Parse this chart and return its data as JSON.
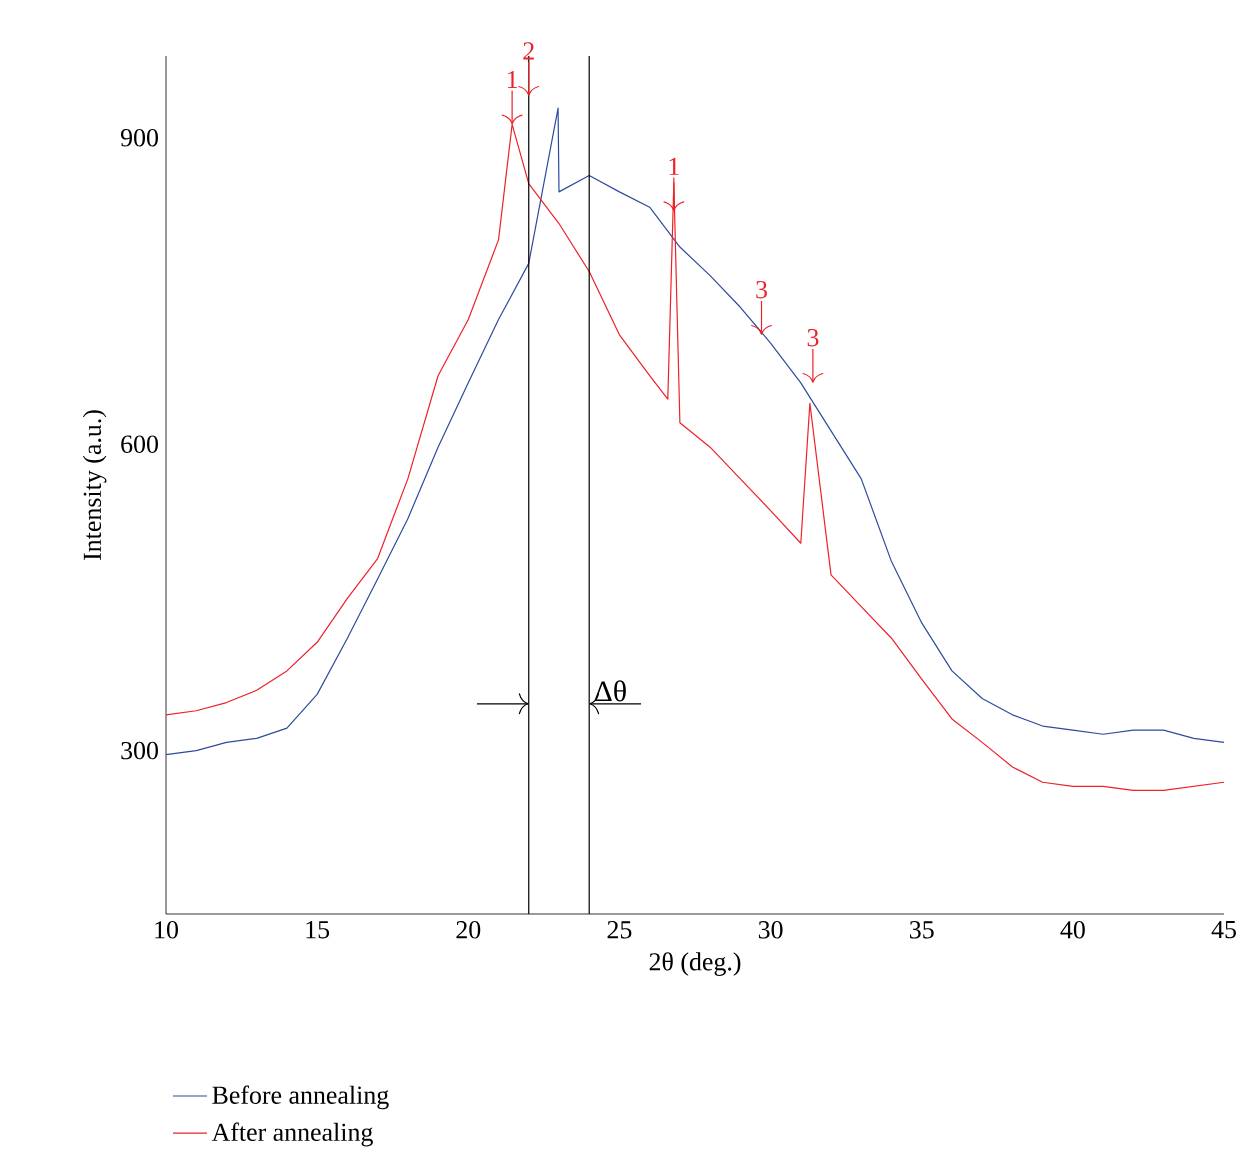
{
  "chart_data": {
    "type": "line",
    "xlabel": "2θ (deg.)",
    "ylabel": "Intensity (a.u.)",
    "xlim": [
      10,
      45
    ],
    "xticks": [
      10,
      15,
      20,
      25,
      30,
      35,
      40,
      45
    ],
    "ylim": [
      140,
      980
    ],
    "yticks": [
      300,
      600,
      900
    ],
    "grid": false,
    "legend": "bottom",
    "marker": "none",
    "line_style": "solid",
    "series": [
      {
        "name": "Before annealing",
        "color": "#2e4a9e",
        "x": [
          10,
          11,
          12,
          13,
          14,
          15,
          16,
          17,
          18,
          19,
          20,
          21,
          22,
          22.97,
          23,
          24,
          25,
          26,
          27,
          28,
          29,
          30,
          31,
          32,
          33,
          34,
          35,
          36,
          37,
          38,
          39,
          40,
          41,
          42,
          43,
          44,
          45
        ],
        "values": [
          296,
          300,
          308,
          312,
          322,
          355,
          410,
          468,
          527,
          597,
          660,
          722,
          777,
          929,
          847,
          863,
          847,
          832,
          793,
          765,
          734,
          699,
          660,
          613,
          566,
          485,
          425,
          378,
          351,
          335,
          324,
          320,
          316,
          320,
          320,
          312,
          308
        ]
      },
      {
        "name": "After annealing",
        "color": "#ee2028",
        "x": [
          10,
          11,
          12,
          13,
          14,
          15,
          16,
          17,
          18,
          19,
          20,
          21,
          21.45,
          22,
          23,
          24,
          25,
          26,
          26.6,
          26.8,
          27,
          28,
          29,
          30,
          31,
          31.3,
          32,
          33,
          34,
          35,
          36,
          37,
          38,
          39,
          40,
          41,
          42,
          43,
          44,
          45
        ],
        "values": [
          335,
          339,
          347,
          359,
          378,
          406,
          449,
          488,
          566,
          667,
          722,
          800,
          913,
          855,
          816,
          769,
          707,
          667,
          644,
          856,
          621,
          597,
          566,
          535,
          503,
          640,
          472,
          441,
          410,
          370,
          331,
          308,
          284,
          269,
          265,
          265,
          261,
          261,
          265,
          269
        ]
      }
    ],
    "ref_lines": [
      {
        "axis": "x",
        "value": 22,
        "color": "#000000"
      },
      {
        "axis": "x",
        "value": 24,
        "label": "Δθ",
        "color": "#000000"
      }
    ],
    "annotations": [
      {
        "text": "1",
        "x": 21.45,
        "y": 913
      },
      {
        "text": "2",
        "x": 22.0,
        "y": 941
      },
      {
        "text": "1",
        "x": 26.8,
        "y": 828
      },
      {
        "text": "3",
        "x": 29.7,
        "y": 707
      },
      {
        "text": "3",
        "x": 31.4,
        "y": 660
      }
    ]
  }
}
